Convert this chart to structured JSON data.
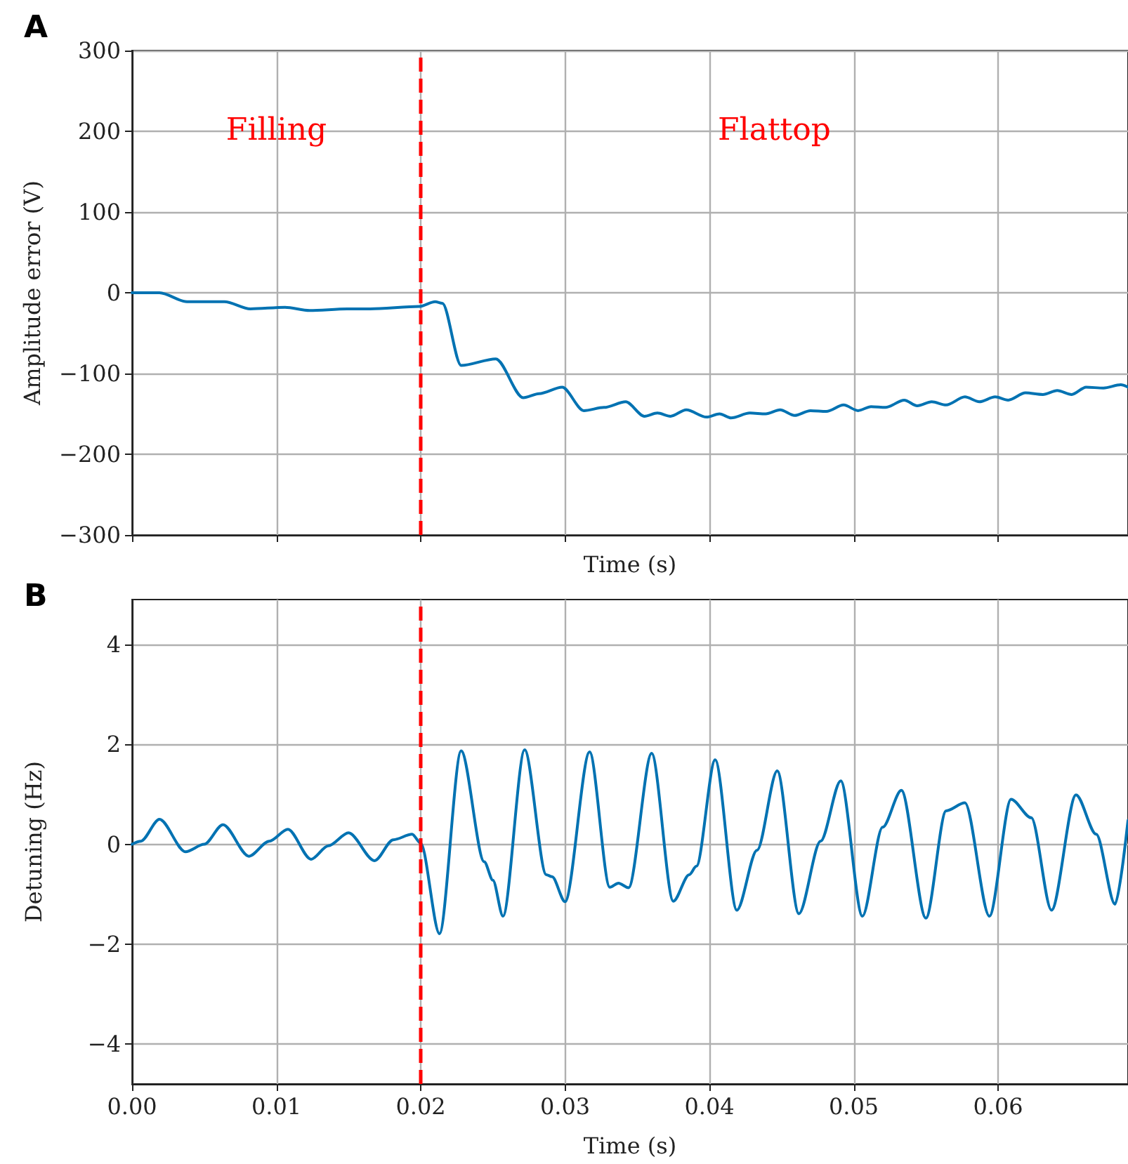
{
  "chart_data": [
    {
      "type": "line",
      "title": "A",
      "xlabel": "Time (s)",
      "ylabel": "Amplitude error (V)",
      "xlim": [
        0,
        0.069
      ],
      "xticks": [
        0,
        0.01,
        0.02,
        0.03,
        0.04,
        0.05,
        0.06
      ],
      "ylim": [
        -300,
        300
      ],
      "yticks": [
        -300,
        -200,
        -100,
        0,
        100,
        200,
        300
      ],
      "grid": true,
      "tick_labels": "y",
      "marker": "none",
      "series": [
        {
          "color": "#0072b2",
          "x": [
            0,
            0.0019,
            0.0038,
            0.0064,
            0.0082,
            0.0106,
            0.0123,
            0.0149,
            0.0165,
            0.0199,
            0.021,
            0.0215,
            0.0228,
            0.0252,
            0.0271,
            0.0282,
            0.0298,
            0.0313,
            0.0327,
            0.0342,
            0.0355,
            0.0364,
            0.0373,
            0.0384,
            0.0398,
            0.0407,
            0.0415,
            0.0428,
            0.0439,
            0.0449,
            0.0459,
            0.047,
            0.0481,
            0.0493,
            0.0503,
            0.0512,
            0.0522,
            0.0535,
            0.0544,
            0.0554,
            0.0564,
            0.0577,
            0.0587,
            0.0598,
            0.0607,
            0.0619,
            0.0631,
            0.0641,
            0.0651,
            0.0661,
            0.0673,
            0.0685,
            0.069
          ],
          "values": [
            0,
            0,
            -11,
            -11,
            -20,
            -18,
            -22,
            -20,
            -20,
            -17,
            -11,
            -13,
            -90,
            -82,
            -130,
            -125,
            -117,
            -146,
            -142,
            -135,
            -153,
            -149,
            -153,
            -145,
            -154,
            -150,
            -155,
            -149,
            -150,
            -145,
            -152,
            -146,
            -147,
            -139,
            -146,
            -141,
            -142,
            -133,
            -140,
            -135,
            -139,
            -129,
            -135,
            -129,
            -133,
            -124,
            -126,
            -121,
            -126,
            -117,
            -118,
            -114,
            -117
          ]
        }
      ],
      "ref_lines": [
        {
          "axis": "x",
          "value": 0.02,
          "color": "#ff0000",
          "line_style": "dashed"
        }
      ],
      "annotations": [
        "Filling",
        "Flattop"
      ]
    },
    {
      "type": "line",
      "title": "B",
      "xlabel": "Time (s)",
      "ylabel": "Detuning (Hz)",
      "xlim": [
        0,
        0.069
      ],
      "xticks": [
        {
          "value": 0,
          "label": "0.00"
        },
        {
          "value": 0.01,
          "label": "0.01"
        },
        {
          "value": 0.02,
          "label": "0.02"
        },
        {
          "value": 0.03,
          "label": "0.03"
        },
        {
          "value": 0.04,
          "label": "0.04"
        },
        {
          "value": 0.05,
          "label": "0.05"
        },
        {
          "value": 0.06,
          "label": "0.06"
        }
      ],
      "ylim": [
        -4.8,
        4.9
      ],
      "yticks": [
        -4,
        -2,
        0,
        2,
        4
      ],
      "grid": true,
      "marker": "none",
      "series": [
        {
          "color": "#0072b2",
          "x": [
            0,
            0.0006,
            0.0019,
            0.0037,
            0.005,
            0.0063,
            0.0081,
            0.0095,
            0.0108,
            0.0124,
            0.0136,
            0.015,
            0.0168,
            0.0181,
            0.0194,
            0.02,
            0.0213,
            0.0228,
            0.0244,
            0.025,
            0.0257,
            0.0272,
            0.0287,
            0.0291,
            0.03,
            0.0317,
            0.0331,
            0.0337,
            0.0344,
            0.036,
            0.0375,
            0.0386,
            0.0391,
            0.0404,
            0.0419,
            0.0433,
            0.0447,
            0.0462,
            0.0477,
            0.0491,
            0.0506,
            0.052,
            0.0533,
            0.055,
            0.0564,
            0.0577,
            0.0594,
            0.0609,
            0.0623,
            0.0637,
            0.0654,
            0.0668,
            0.0681,
            0.069
          ],
          "values": [
            0,
            0.06,
            0.5,
            -0.15,
            0,
            0.39,
            -0.24,
            0.06,
            0.3,
            -0.3,
            -0.03,
            0.23,
            -0.33,
            0.09,
            0.2,
            0.02,
            -1.79,
            1.87,
            -0.35,
            -0.72,
            -1.44,
            1.89,
            -0.61,
            -0.65,
            -1.15,
            1.85,
            -0.86,
            -0.78,
            -0.87,
            1.82,
            -1.14,
            -0.61,
            -0.44,
            1.69,
            -1.32,
            -0.12,
            1.47,
            -1.39,
            0.06,
            1.27,
            -1.44,
            0.34,
            1.08,
            -1.48,
            0.67,
            0.83,
            -1.44,
            0.9,
            0.53,
            -1.32,
            0.99,
            0.2,
            -1.2,
            0.48
          ]
        }
      ],
      "ref_lines": [
        {
          "axis": "x",
          "value": 0.02,
          "color": "#ff0000",
          "line_style": "dashed"
        }
      ]
    }
  ]
}
